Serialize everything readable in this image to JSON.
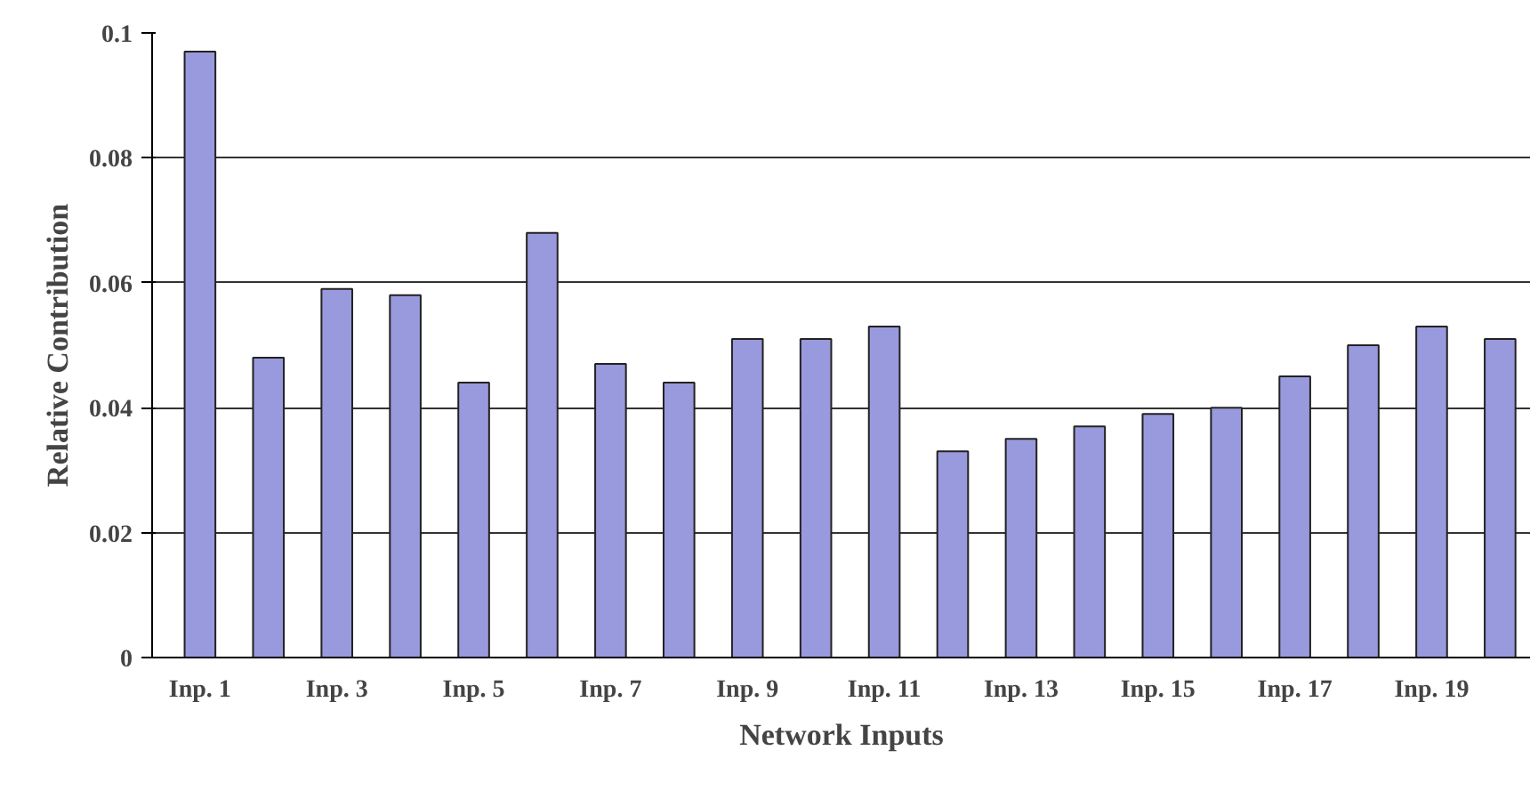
{
  "chart_data": {
    "type": "bar",
    "xlabel": "Network Inputs",
    "ylabel": "Relative Contribution",
    "categories": [
      "Inp. 1",
      null,
      "Inp. 3",
      null,
      "Inp. 5",
      null,
      "Inp. 7",
      null,
      "Inp. 9",
      null,
      "Inp. 11",
      null,
      "Inp. 13",
      null,
      "Inp. 15",
      null,
      "Inp. 17",
      null,
      "Inp. 19",
      null
    ],
    "values": [
      0.097,
      0.048,
      0.059,
      0.058,
      0.044,
      0.068,
      0.047,
      0.044,
      0.051,
      0.051,
      0.053,
      0.033,
      0.035,
      0.037,
      0.039,
      0.04,
      0.045,
      0.05,
      0.053,
      0.051
    ],
    "color": "#9999dd",
    "ylim": [
      0,
      0.1
    ],
    "yticks": [
      0,
      0.02,
      0.04,
      0.06,
      0.08,
      0.1
    ],
    "grid": "y"
  }
}
